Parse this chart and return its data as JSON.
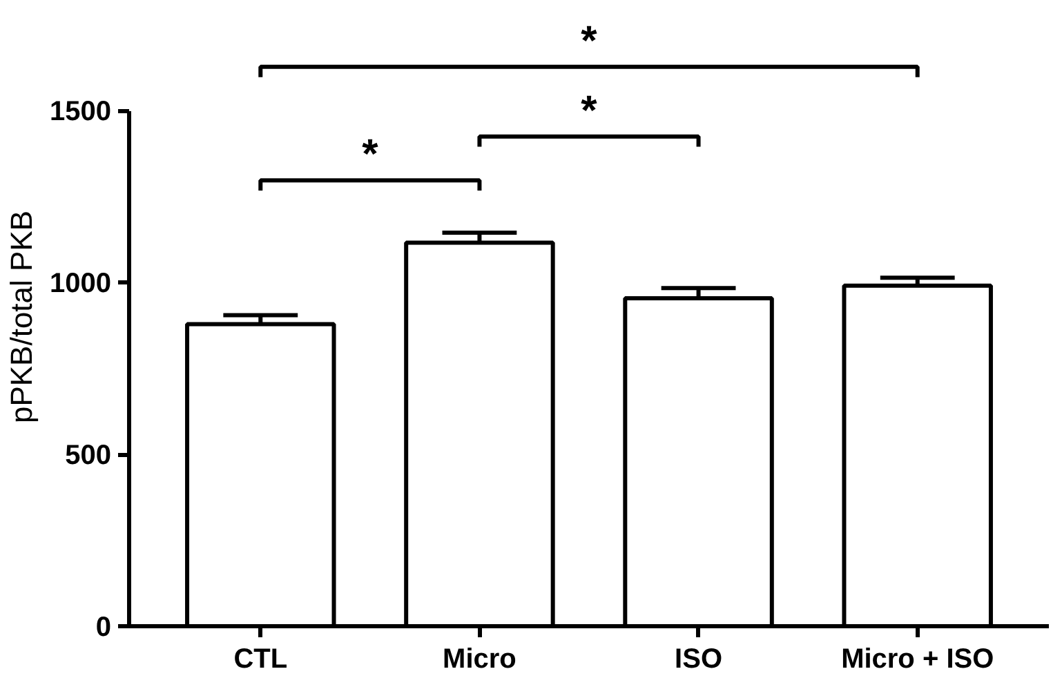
{
  "chart_data": {
    "type": "bar",
    "ylabel": "pPKB/total PKB",
    "categories": [
      "CTL",
      "Micro",
      "ISO",
      "Micro + ISO"
    ],
    "values": [
      879,
      1116,
      954,
      991
    ],
    "errors": [
      26,
      29,
      30,
      23
    ],
    "color": "#ffffff",
    "ylim": [
      0,
      1500
    ],
    "yticks": [
      0,
      500,
      1000,
      1500
    ],
    "grid": false,
    "annotations": [
      "*",
      "*",
      "*"
    ]
  }
}
